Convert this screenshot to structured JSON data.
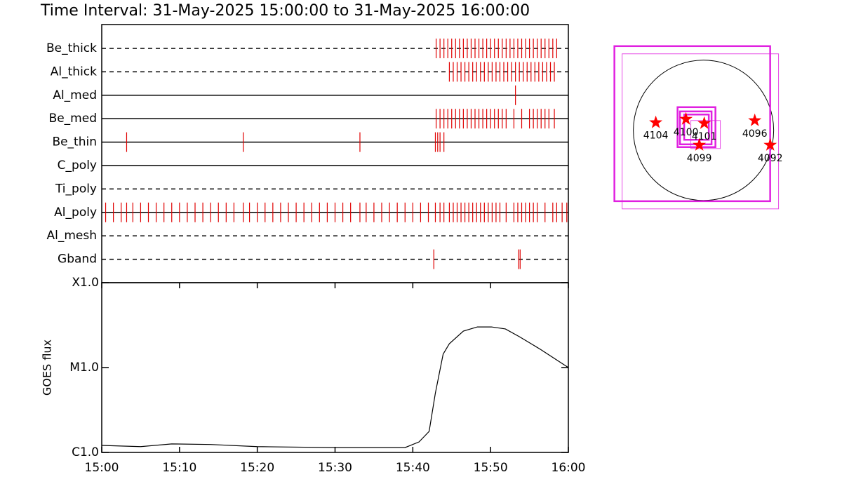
{
  "header": {
    "title": "Time Interval: 31-May-2025 15:00:00 to 31-May-2025 16:00:00"
  },
  "chart_data": [
    {
      "type": "event",
      "xlim": [
        0,
        60
      ],
      "event_color": "#e00000",
      "categories": [
        "Be_thick",
        "Al_thick",
        "Al_med",
        "Be_med",
        "Be_thin",
        "C_poly",
        "Ti_poly",
        "Al_poly",
        "Al_mesh",
        "Gband"
      ],
      "line_styles": [
        "dashed",
        "dashed",
        "solid",
        "solid",
        "solid",
        "solid",
        "dashed",
        "solid",
        "dashed",
        "dashed"
      ],
      "events": [
        [
          43.0,
          43.5,
          44.0,
          44.5,
          45.0,
          45.5,
          46.0,
          46.5,
          47.0,
          47.5,
          48.0,
          48.5,
          49.0,
          49.5,
          50.0,
          50.5,
          51.0,
          51.5,
          52.0,
          52.5,
          53.0,
          53.5,
          54.0,
          54.5,
          55.0,
          55.5,
          56.0,
          56.5,
          57.0,
          57.5,
          58.0,
          58.5
        ],
        [
          44.7,
          45.2,
          45.7,
          46.2,
          46.7,
          47.2,
          47.7,
          48.2,
          48.7,
          49.2,
          49.7,
          50.2,
          50.7,
          51.2,
          51.7,
          52.2,
          52.7,
          53.2,
          53.7,
          54.2,
          54.7,
          55.2,
          55.7,
          56.2,
          56.7,
          57.2,
          57.7,
          58.2
        ],
        [
          53.2
        ],
        [
          43.0,
          43.5,
          44.0,
          44.5,
          45.0,
          45.5,
          46.0,
          46.5,
          47.0,
          47.5,
          48.0,
          48.5,
          49.0,
          49.5,
          50.0,
          50.5,
          51.0,
          51.5,
          52.0,
          53.0,
          54.0,
          55.0,
          55.5,
          56.0,
          56.5,
          57.0,
          57.5,
          58.2
        ],
        [
          3.2,
          18.2,
          33.2,
          42.9,
          43.2,
          43.5,
          44.0
        ],
        [],
        [],
        [
          0.5,
          1.5,
          2.5,
          3.2,
          4.0,
          5.0,
          6.0,
          7.0,
          8.0,
          9.0,
          10.0,
          11.0,
          12.0,
          13.0,
          14.0,
          15.0,
          16.0,
          17.0,
          18.2,
          19.0,
          20.0,
          21.0,
          22.0,
          23.0,
          24.0,
          25.0,
          26.0,
          27.0,
          28.0,
          29.0,
          30.0,
          31.0,
          32.0,
          33.2,
          34.0,
          35.0,
          36.0,
          37.0,
          38.0,
          39.0,
          40.0,
          41.0,
          42.0,
          42.9,
          43.5,
          44.0,
          44.7,
          45.2,
          45.7,
          46.2,
          46.7,
          47.2,
          47.7,
          48.2,
          48.7,
          49.2,
          49.7,
          50.2,
          50.7,
          51.2,
          52.0,
          53.0,
          53.5,
          54.0,
          54.5,
          55.0,
          55.5,
          56.0,
          57.0,
          58.0,
          58.5,
          59.2,
          59.8
        ],
        [],
        [
          42.7,
          53.6,
          53.8
        ]
      ]
    },
    {
      "type": "line",
      "xlim": [
        0,
        60
      ],
      "ylim": [
        1e-06,
        0.0001
      ],
      "log_y": true,
      "ylabel": "GOES flux",
      "xticks": [
        {
          "value": 0,
          "label": "15:00"
        },
        {
          "value": 10,
          "label": "15:10"
        },
        {
          "value": 20,
          "label": "15:20"
        },
        {
          "value": 30,
          "label": "15:30"
        },
        {
          "value": 40,
          "label": "15:40"
        },
        {
          "value": 50,
          "label": "15:50"
        },
        {
          "value": 60,
          "label": "16:00"
        }
      ],
      "yticks": [
        {
          "value": 1e-06,
          "label": "C1.0"
        },
        {
          "value": 1e-05,
          "label": "M1.0"
        },
        {
          "value": 0.0001,
          "label": "X1.0"
        }
      ],
      "x": [
        0,
        5,
        9,
        14,
        20,
        30,
        39,
        40.8,
        42.1,
        42.9,
        43.9,
        44.7,
        46.5,
        48.3,
        50.1,
        51.9,
        53.7,
        56.4,
        60
      ],
      "series": [
        {
          "color": "#000000",
          "values": [
            1.21e-06,
            1.17e-06,
            1.26e-06,
            1.24e-06,
            1.17e-06,
            1.14e-06,
            1.14e-06,
            1.33e-06,
            1.77e-06,
            5e-06,
            1.44e-05,
            1.91e-05,
            2.69e-05,
            3.01e-05,
            3.01e-05,
            2.85e-05,
            2.31e-05,
            1.64e-05,
            1e-05
          ]
        }
      ]
    },
    {
      "type": "map",
      "xlim": [
        -1450,
        1400
      ],
      "ylim": [
        -1370,
        1480
      ],
      "disk_radius": 950,
      "star_color": "#ff0000",
      "box_color": "#e020e0",
      "stars": [
        {
          "label": "4104",
          "x": -646,
          "y": 105
        },
        {
          "label": "4100",
          "x": -238,
          "y": 152
        },
        {
          "label": "4101",
          "x": 10,
          "y": 95
        },
        {
          "label": "4096",
          "x": 694,
          "y": 133
        },
        {
          "label": "4092",
          "x": 903,
          "y": -200
        },
        {
          "label": "4099",
          "x": -57,
          "y": -200
        }
      ],
      "boxes": [
        {
          "xc": -152,
          "yc": 90,
          "w": 2109,
          "h": 2100,
          "bold": true
        },
        {
          "xc": -43,
          "yc": -14,
          "w": 2118,
          "h": 2100,
          "bold": false
        },
        {
          "xc": -95,
          "yc": 43,
          "w": 513,
          "h": 541,
          "bold": true
        },
        {
          "xc": -105,
          "yc": 33,
          "w": 428,
          "h": 446,
          "bold": true
        },
        {
          "xc": -95,
          "yc": 43,
          "w": 333,
          "h": 342,
          "bold": true
        },
        {
          "xc": 28,
          "yc": -57,
          "w": 399,
          "h": 380,
          "bold": false
        }
      ]
    }
  ]
}
